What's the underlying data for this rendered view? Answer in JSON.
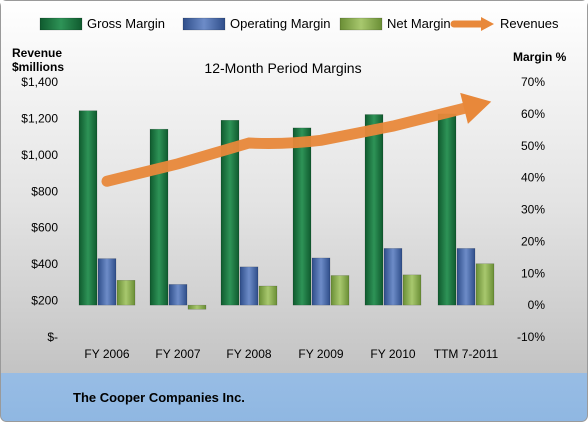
{
  "chart_data": {
    "type": "bar",
    "title": "12-Month Period Margins",
    "company": "The Cooper Companies Inc.",
    "left_axis": {
      "label_line1": "Revenue",
      "label_line2": "$millions",
      "range": [
        0,
        1400
      ],
      "step": 200,
      "tick_labels": [
        "$-",
        "$200",
        "$400",
        "$600",
        "$800",
        "$1,000",
        "$1,200",
        "$1,400"
      ]
    },
    "right_axis": {
      "label": "Margin %",
      "range": [
        -10,
        70
      ],
      "step": 10,
      "tick_labels": [
        "-10%",
        "0%",
        "10%",
        "20%",
        "30%",
        "40%",
        "50%",
        "60%",
        "70%"
      ]
    },
    "categories": [
      "FY 2006",
      "FY 2007",
      "FY 2008",
      "FY 2009",
      "FY 2010",
      "TTM 7-2011"
    ],
    "series": [
      {
        "name": "Gross Margin",
        "axis": "right",
        "color": "#1F7A45",
        "values": [
          61.0,
          55.2,
          58.0,
          55.6,
          59.8,
          60.0
        ]
      },
      {
        "name": "Operating Margin",
        "axis": "right",
        "color": "#4F6FAF",
        "values": [
          14.6,
          6.5,
          12.0,
          14.8,
          17.8,
          17.8
        ]
      },
      {
        "name": "Net Margin",
        "axis": "right",
        "color": "#8CB050",
        "values": [
          7.8,
          -1.3,
          6.0,
          9.3,
          9.5,
          13.0
        ]
      },
      {
        "name": "Revenues",
        "axis": "left",
        "type": "line",
        "color": "#E8883A",
        "values": [
          855,
          951,
          1065,
          1080,
          1158,
          1258
        ]
      }
    ],
    "legend": {
      "position": "top"
    },
    "grid": false
  }
}
